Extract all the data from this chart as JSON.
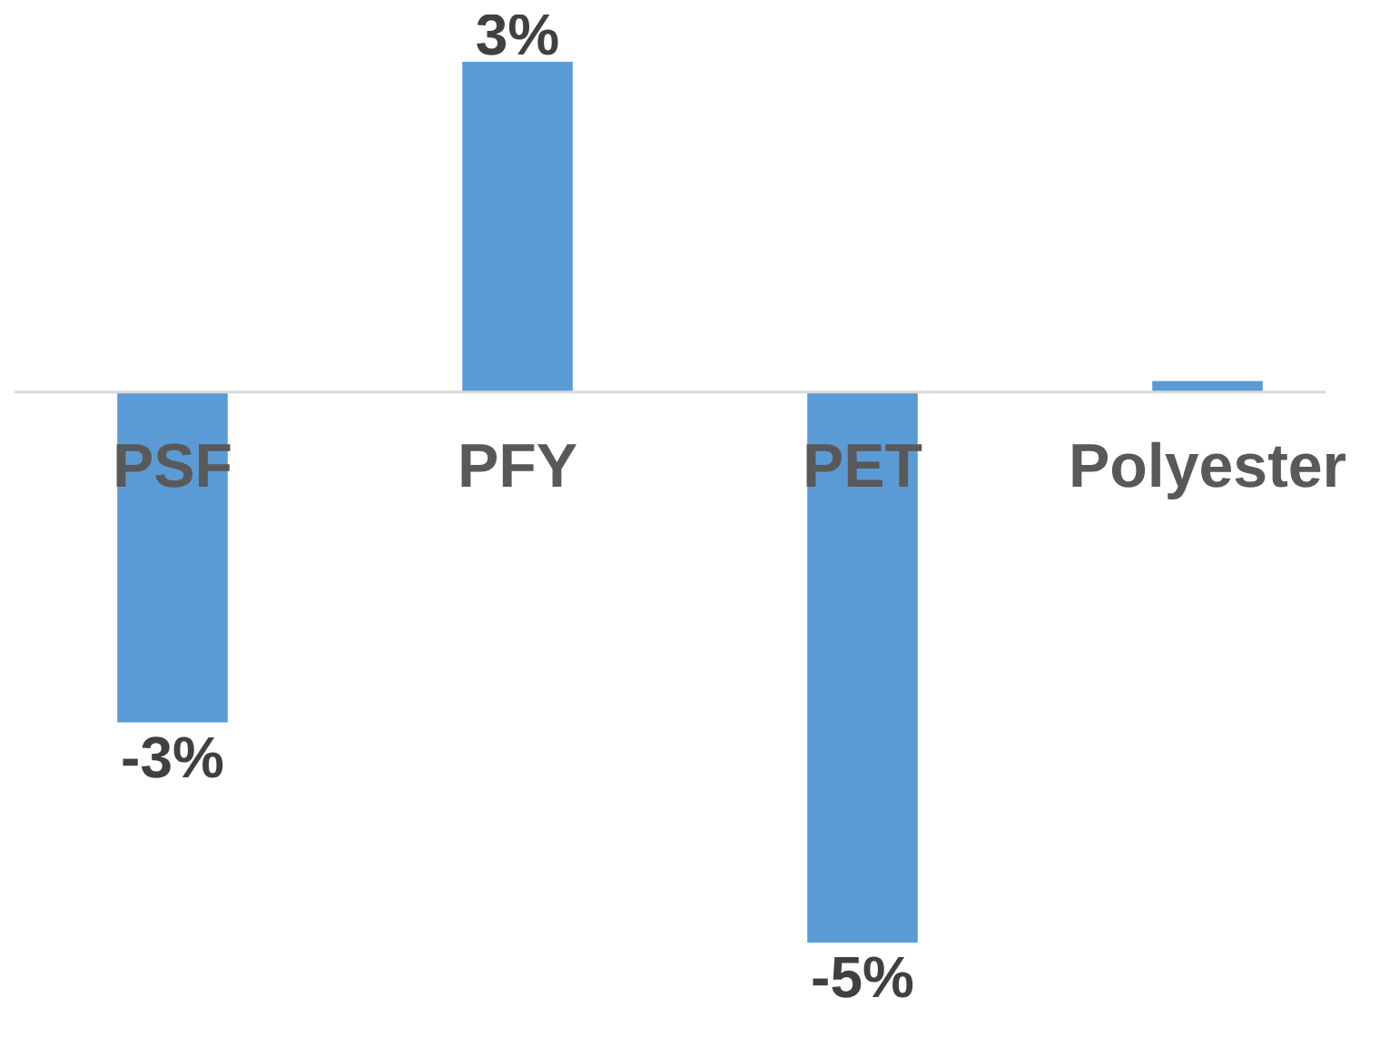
{
  "chart_data": {
    "type": "bar",
    "categories": [
      "PSF",
      "PFY",
      "PET",
      "Polyester"
    ],
    "values": [
      -3,
      3,
      -5,
      0.1
    ],
    "value_labels": [
      "-3%",
      "3%",
      "-5%",
      null
    ],
    "color": "#5b9bd5"
  }
}
